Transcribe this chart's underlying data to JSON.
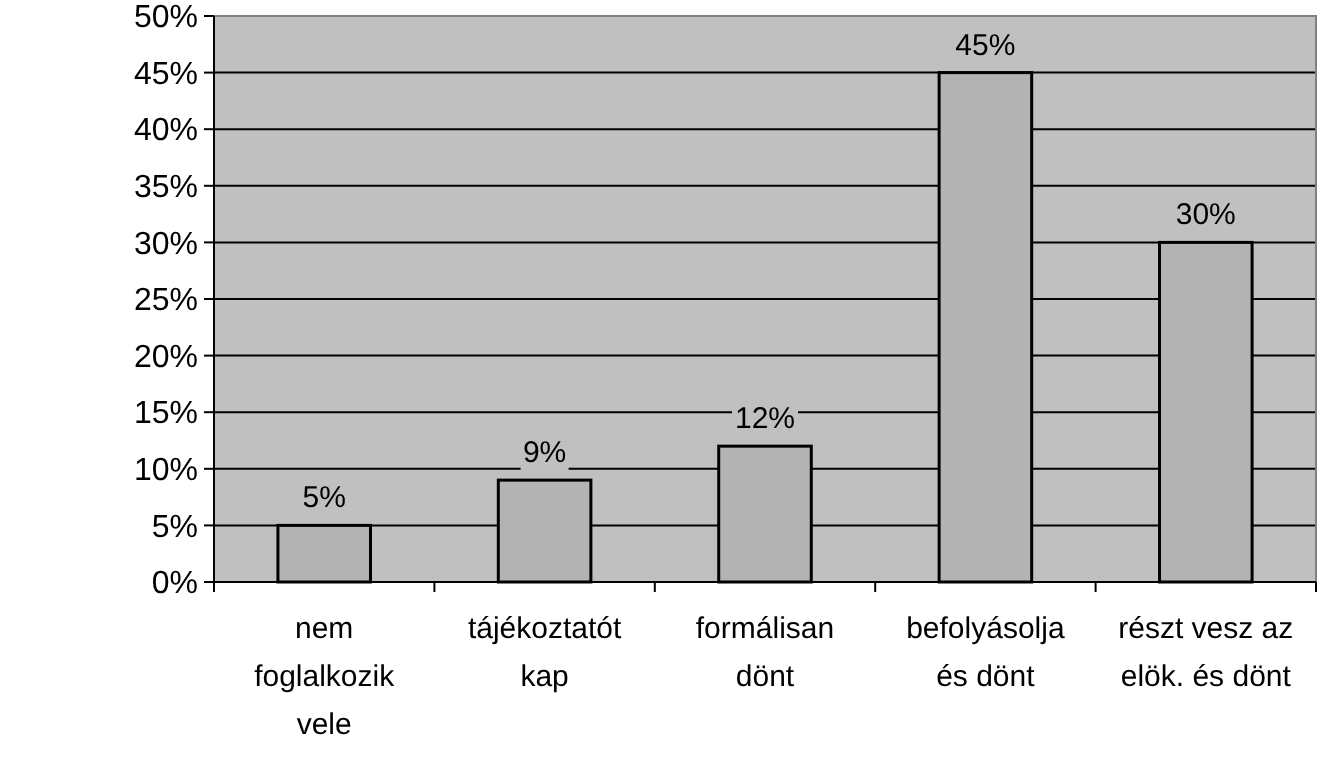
{
  "chart_data": {
    "type": "bar",
    "categories": [
      "nem foglalkozik vele",
      "tájékoztatót kap",
      "formálisan dönt",
      "befolyásolja és dönt",
      "részt vesz az elök. és dönt"
    ],
    "values": [
      5,
      9,
      12,
      45,
      30
    ],
    "value_labels": [
      "5%",
      "9%",
      "12%",
      "45%",
      "30%"
    ],
    "color": "#b3b3b3",
    "ylim": [
      0,
      50
    ],
    "yticks": [
      {
        "value": 0,
        "label": "0%"
      },
      {
        "value": 5,
        "label": "5%"
      },
      {
        "value": 10,
        "label": "10%"
      },
      {
        "value": 15,
        "label": "15%"
      },
      {
        "value": 20,
        "label": "20%"
      },
      {
        "value": 25,
        "label": "25%"
      },
      {
        "value": 30,
        "label": "30%"
      },
      {
        "value": 35,
        "label": "35%"
      },
      {
        "value": 40,
        "label": "40%"
      },
      {
        "value": 45,
        "label": "45%"
      },
      {
        "value": 50,
        "label": "50%"
      }
    ],
    "grid": "y"
  }
}
